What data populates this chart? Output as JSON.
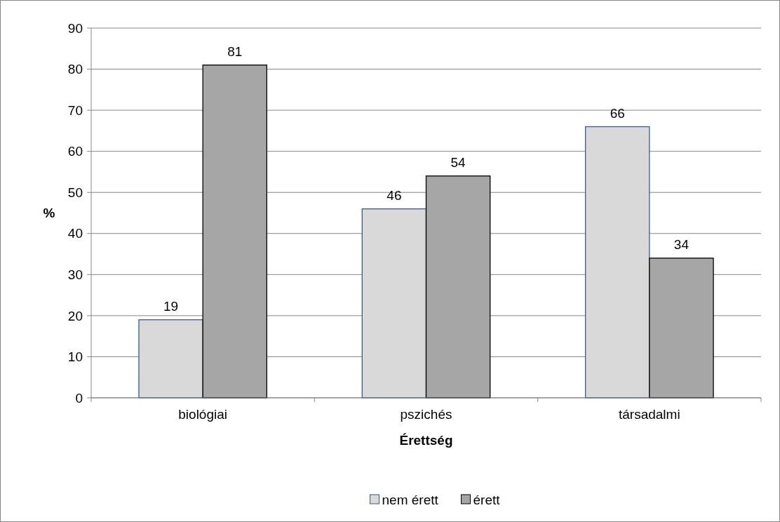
{
  "chart_data": {
    "type": "bar",
    "xlabel": "Érettség",
    "ylabel": "%",
    "categories": [
      "biológiai",
      "pszichés",
      "társadalmi"
    ],
    "series": [
      {
        "name": "nem érett",
        "color": "#d9d9d9",
        "values": [
          19,
          46,
          66
        ]
      },
      {
        "name": "érett",
        "color": "#a6a6a6",
        "values": [
          81,
          54,
          34
        ]
      }
    ],
    "ylim": [
      0,
      90
    ],
    "yticks": [
      0,
      10,
      20,
      30,
      40,
      50,
      60,
      70,
      80,
      90
    ],
    "grid": "y",
    "legend": "bottom",
    "data_labels": true
  }
}
